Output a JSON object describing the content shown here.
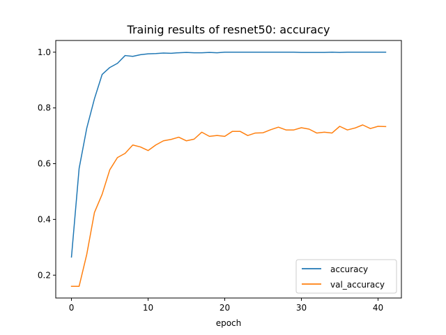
{
  "chart_data": {
    "type": "line",
    "title": "Trainig results of resnet50: accuracy",
    "xlabel": "epoch",
    "ylabel": "",
    "xlim": [
      -2.05,
      43.05
    ],
    "ylim": [
      0.118,
      1.042
    ],
    "xticks": [
      0,
      10,
      20,
      30,
      40
    ],
    "yticks": [
      0.2,
      0.4,
      0.6,
      0.8,
      1.0
    ],
    "ytick_labels": [
      "0.2",
      "0.4",
      "0.6",
      "0.8",
      "1.0"
    ],
    "grid": false,
    "legend_position": "lower-right",
    "x": [
      0,
      1,
      2,
      3,
      4,
      5,
      6,
      7,
      8,
      9,
      10,
      11,
      12,
      13,
      14,
      15,
      16,
      17,
      18,
      19,
      20,
      21,
      22,
      23,
      24,
      25,
      26,
      27,
      28,
      29,
      30,
      31,
      32,
      33,
      34,
      35,
      36,
      37,
      38,
      39,
      40,
      41
    ],
    "series": [
      {
        "name": "accuracy",
        "color": "#1f77b4",
        "values": [
          0.265,
          0.583,
          0.728,
          0.833,
          0.92,
          0.945,
          0.96,
          0.988,
          0.985,
          0.991,
          0.994,
          0.995,
          0.997,
          0.996,
          0.998,
          0.999,
          0.998,
          0.998,
          0.999,
          0.998,
          1.0,
          1.0,
          1.0,
          1.0,
          1.0,
          1.0,
          1.0,
          1.0,
          1.0,
          1.0,
          0.999,
          0.999,
          0.999,
          0.999,
          1.0,
          0.999,
          1.0,
          1.0,
          1.0,
          1.0,
          1.0,
          1.0
        ]
      },
      {
        "name": "val_accuracy",
        "color": "#ff7f0e",
        "values": [
          0.16,
          0.16,
          0.275,
          0.425,
          0.49,
          0.578,
          0.622,
          0.637,
          0.667,
          0.66,
          0.647,
          0.667,
          0.682,
          0.687,
          0.695,
          0.682,
          0.688,
          0.713,
          0.698,
          0.701,
          0.698,
          0.716,
          0.716,
          0.701,
          0.71,
          0.711,
          0.722,
          0.731,
          0.721,
          0.721,
          0.729,
          0.724,
          0.71,
          0.713,
          0.71,
          0.734,
          0.721,
          0.728,
          0.739,
          0.726,
          0.734,
          0.733
        ]
      }
    ]
  }
}
